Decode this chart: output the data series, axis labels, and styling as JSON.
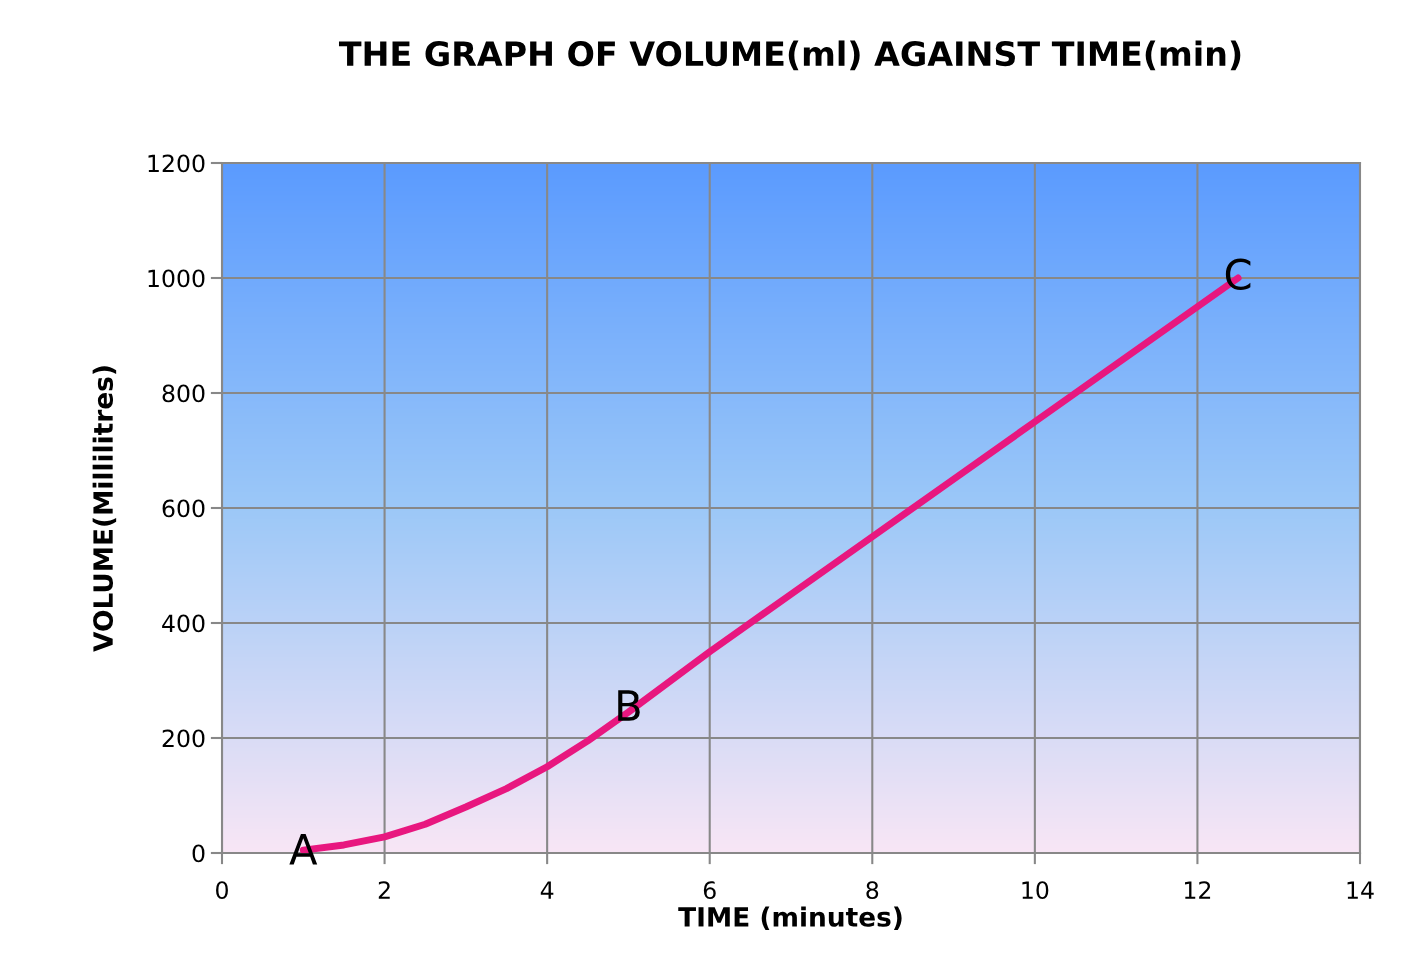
{
  "chart_data": {
    "type": "line",
    "title": "THE GRAPH OF VOLUME(ml) AGAINST TIME(min)",
    "xlabel": "TIME (minutes)",
    "ylabel": "VOLUME(Millilitres)",
    "series": [
      {
        "color": "#e8177f",
        "x": [
          1,
          1.5,
          2,
          2.5,
          3,
          3.5,
          4,
          4.5,
          5,
          6,
          7,
          8,
          9,
          10,
          11,
          12,
          12.5
        ],
        "values": [
          5,
          14,
          28,
          50,
          80,
          112,
          150,
          195,
          245,
          350,
          450,
          550,
          650,
          750,
          850,
          950,
          1000
        ]
      }
    ],
    "annotations": [
      {
        "text": "A",
        "x": 1,
        "y": 0
      },
      {
        "text": "B",
        "x": 5,
        "y": 250
      },
      {
        "text": "C",
        "x": 12.5,
        "y": 1000
      }
    ],
    "xlim": [
      0,
      14
    ],
    "xticks": [
      0,
      2,
      4,
      6,
      8,
      10,
      12,
      14
    ],
    "ylim": [
      0,
      1200
    ],
    "yticks": [
      0,
      200,
      400,
      600,
      800,
      1000,
      1200
    ],
    "grid": true,
    "marker": "none",
    "line_style": "solid",
    "legend": false
  }
}
